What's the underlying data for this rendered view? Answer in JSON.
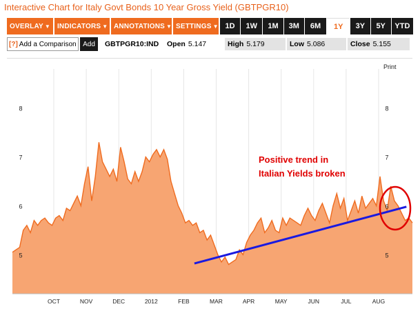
{
  "title": "Interactive Chart for Italy Govt Bonds 10 Year Gross Yield (GBTPGR10)",
  "menus": [
    {
      "label": "OVERLAY",
      "arrow": "▼"
    },
    {
      "label": "INDICATORS",
      "arrow": "▼"
    },
    {
      "label": "ANNOTATIONS",
      "arrow": "▼"
    },
    {
      "label": "SETTINGS",
      "arrow": "▼"
    }
  ],
  "periods": [
    "1D",
    "1W",
    "1M",
    "3M",
    "6M",
    "1Y",
    "3Y",
    "5Y",
    "YTD"
  ],
  "selected_period": "1Y",
  "compare_label": "Add a Comparison",
  "compare_help": "[?]",
  "add_label": "Add",
  "ticker": "GBTPGR10:IND",
  "stats": {
    "open_label": "Open",
    "open": "5.147",
    "high_label": "High",
    "high": "5.179",
    "low_label": "Low",
    "low": "5.086",
    "close_label": "Close",
    "close": "5.155"
  },
  "print_label": "Print",
  "annotation": {
    "line1": "Positive trend in",
    "line2": "Italian Yields broken",
    "color": "#e00000"
  },
  "colors": {
    "accent": "#ef6b1f",
    "area": "#f7a572",
    "area_line": "#ef6b1f",
    "trend": "#1a1ae0",
    "circle": "#e00000"
  },
  "chart_data": {
    "type": "area",
    "xlabel": "",
    "ylabel": "",
    "ylim": [
      4.2,
      8.8
    ],
    "yticks": [
      5,
      6,
      7,
      8
    ],
    "ytick_labels": [
      "5",
      "6",
      "7",
      "8"
    ],
    "xtick_labels": [
      "OCT",
      "NOV",
      "DEC",
      "2012",
      "FEB",
      "MAR",
      "APR",
      "MAY",
      "JUN",
      "JUL",
      "AUG"
    ],
    "series": [
      {
        "values": [
          5.05,
          5.1,
          5.15,
          5.5,
          5.6,
          5.45,
          5.7,
          5.6,
          5.7,
          5.75,
          5.65,
          5.6,
          5.75,
          5.8,
          5.7,
          5.95,
          5.9,
          6.05,
          6.2,
          6.0,
          6.45,
          6.8,
          6.1,
          6.6,
          7.3,
          6.9,
          6.75,
          6.6,
          6.75,
          6.5,
          7.2,
          6.9,
          6.55,
          6.45,
          6.7,
          6.5,
          6.7,
          7.0,
          6.9,
          7.05,
          7.15,
          7.0,
          7.15,
          6.95,
          6.5,
          6.25,
          6.0,
          5.85,
          5.65,
          5.7,
          5.6,
          5.65,
          5.45,
          5.5,
          5.3,
          5.4,
          5.2,
          5.0,
          4.85,
          4.95,
          4.8,
          4.85,
          4.9,
          5.1,
          5.0,
          5.25,
          5.4,
          5.5,
          5.65,
          5.75,
          5.45,
          5.55,
          5.7,
          5.5,
          5.45,
          5.75,
          5.6,
          5.75,
          5.7,
          5.65,
          5.6,
          5.8,
          5.95,
          5.8,
          5.7,
          5.9,
          6.05,
          5.85,
          5.65,
          6.0,
          6.25,
          5.95,
          6.15,
          5.7,
          5.9,
          6.1,
          5.85,
          6.2,
          5.95,
          6.05,
          6.15,
          6.0,
          6.6,
          6.1,
          5.9,
          6.4,
          6.1,
          6.0,
          5.85,
          5.7,
          5.75,
          5.65
        ]
      }
    ],
    "trendline": {
      "start": [
        0.455,
        4.82
      ],
      "end": [
        0.985,
        5.98
      ]
    }
  }
}
